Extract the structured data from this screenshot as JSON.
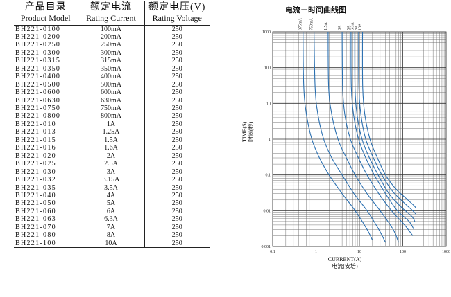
{
  "table": {
    "headers": [
      {
        "cn": "产品目录",
        "en": "Product Model"
      },
      {
        "cn": "额定电流",
        "en": "Rating Current"
      },
      {
        "cn": "额定电压(V)",
        "en": "Rating Voltage"
      }
    ],
    "rows": [
      [
        "BH221-0100",
        "100mA",
        "250"
      ],
      [
        "BH221-0200",
        "200mA",
        "250"
      ],
      [
        "BH221-0250",
        "250mA",
        "250"
      ],
      [
        "BH221-0300",
        "300mA",
        "250"
      ],
      [
        "BH221-0315",
        "315mA",
        "250"
      ],
      [
        "BH221-0350",
        "350mA",
        "250"
      ],
      [
        "BH221-0400",
        "400mA",
        "250"
      ],
      [
        "BH221-0500",
        "500mA",
        "250"
      ],
      [
        "BH221-0600",
        "600mA",
        "250"
      ],
      [
        "BH221-0630",
        "630mA",
        "250"
      ],
      [
        "BH221-0750",
        "750mA",
        "250"
      ],
      [
        "BH221-0800",
        "800mA",
        "250"
      ],
      [
        "BH221-010",
        "1A",
        "250"
      ],
      [
        "BH221-013",
        "1.25A",
        "250"
      ],
      [
        "BH221-015",
        "1.5A",
        "250"
      ],
      [
        "BH221-016",
        "1.6A",
        "250"
      ],
      [
        "BH221-020",
        "2A",
        "250"
      ],
      [
        "BH221-025",
        "2.5A",
        "250"
      ],
      [
        "BH221-030",
        "3A",
        "250"
      ],
      [
        "BH221-032",
        "3.15A",
        "250"
      ],
      [
        "BH221-035",
        "3.5A",
        "250"
      ],
      [
        "BH221-040",
        "4A",
        "250"
      ],
      [
        "BH221-050",
        "5A",
        "250"
      ],
      [
        "BH221-060",
        "6A",
        "250"
      ],
      [
        "BH221-063",
        "6.3A",
        "250"
      ],
      [
        "BH221-070",
        "7A",
        "250"
      ],
      [
        "BH221-080",
        "8A",
        "250"
      ],
      [
        "BH221-100",
        "10A",
        "250"
      ]
    ]
  },
  "chart_data": {
    "type": "line",
    "title": "电流－时间曲线图",
    "xlabel": "CURRENT(A)",
    "xlabel_cn": "电流(安培)",
    "ylabel": "TIME(S)",
    "ylabel_cn": "时间(秒)",
    "x_scale": "log",
    "y_scale": "log",
    "xlim": [
      0.1,
      1000
    ],
    "ylim": [
      0.001,
      1000
    ],
    "x_ticks": [
      "0.1",
      "1",
      "10",
      "100",
      "1000"
    ],
    "y_ticks": [
      "1000",
      "100",
      "10",
      "1",
      "0.1",
      "0.01",
      "0.001"
    ],
    "grid": true,
    "line_color": "#2a6fb0",
    "series": [
      {
        "name": "375mA",
        "points": [
          [
            0.5,
            1000
          ],
          [
            0.52,
            30
          ],
          [
            0.6,
            5
          ],
          [
            0.8,
            1
          ],
          [
            1.2,
            0.3
          ],
          [
            2,
            0.1
          ],
          [
            4,
            0.03
          ],
          [
            8,
            0.01
          ],
          [
            15,
            0.003
          ],
          [
            20,
            0.0015
          ]
        ]
      },
      {
        "name": "750mA",
        "points": [
          [
            0.9,
            1000
          ],
          [
            0.95,
            30
          ],
          [
            1.1,
            5
          ],
          [
            1.5,
            1
          ],
          [
            2.3,
            0.3
          ],
          [
            4,
            0.1
          ],
          [
            7.5,
            0.03
          ],
          [
            15,
            0.01
          ],
          [
            28,
            0.003
          ],
          [
            40,
            0.0013
          ]
        ]
      },
      {
        "name": "1.5A",
        "points": [
          [
            1.9,
            1000
          ],
          [
            1.95,
            30
          ],
          [
            2.3,
            5
          ],
          [
            3.2,
            1
          ],
          [
            5,
            0.3
          ],
          [
            8,
            0.1
          ],
          [
            15,
            0.03
          ],
          [
            30,
            0.01
          ],
          [
            60,
            0.003
          ],
          [
            80,
            0.0013
          ]
        ]
      },
      {
        "name": "3A",
        "points": [
          [
            4.0,
            1000
          ],
          [
            4.1,
            30
          ],
          [
            4.6,
            5
          ],
          [
            6.2,
            1
          ],
          [
            9.5,
            0.3
          ],
          [
            15,
            0.1
          ],
          [
            28,
            0.03
          ],
          [
            55,
            0.01
          ],
          [
            110,
            0.004
          ],
          [
            170,
            0.002
          ]
        ]
      },
      {
        "name": "5A",
        "points": [
          [
            6.4,
            1000
          ],
          [
            6.5,
            30
          ],
          [
            7.3,
            5
          ],
          [
            9.6,
            1
          ],
          [
            14,
            0.3
          ],
          [
            22,
            0.1
          ],
          [
            40,
            0.03
          ],
          [
            75,
            0.01
          ],
          [
            140,
            0.005
          ],
          [
            180,
            0.003
          ]
        ]
      },
      {
        "name": "6.3A",
        "points": [
          [
            7.8,
            1000
          ],
          [
            7.9,
            30
          ],
          [
            8.8,
            5
          ],
          [
            11.5,
            1
          ],
          [
            17,
            0.3
          ],
          [
            27,
            0.1
          ],
          [
            48,
            0.03
          ],
          [
            90,
            0.013
          ],
          [
            160,
            0.007
          ],
          [
            190,
            0.005
          ]
        ]
      },
      {
        "name": "8A",
        "points": [
          [
            9.6,
            1000
          ],
          [
            9.7,
            30
          ],
          [
            10.8,
            5
          ],
          [
            14,
            1
          ],
          [
            21,
            0.3
          ],
          [
            33,
            0.1
          ],
          [
            58,
            0.035
          ],
          [
            105,
            0.017
          ],
          [
            170,
            0.01
          ],
          [
            200,
            0.008
          ]
        ]
      },
      {
        "name": "10A",
        "points": [
          [
            11.8,
            1000
          ],
          [
            11.9,
            30
          ],
          [
            13.3,
            5
          ],
          [
            17.5,
            1
          ],
          [
            26,
            0.3
          ],
          [
            40,
            0.1
          ],
          [
            70,
            0.04
          ],
          [
            120,
            0.022
          ],
          [
            180,
            0.014
          ],
          [
            200,
            0.012
          ]
        ]
      }
    ]
  }
}
